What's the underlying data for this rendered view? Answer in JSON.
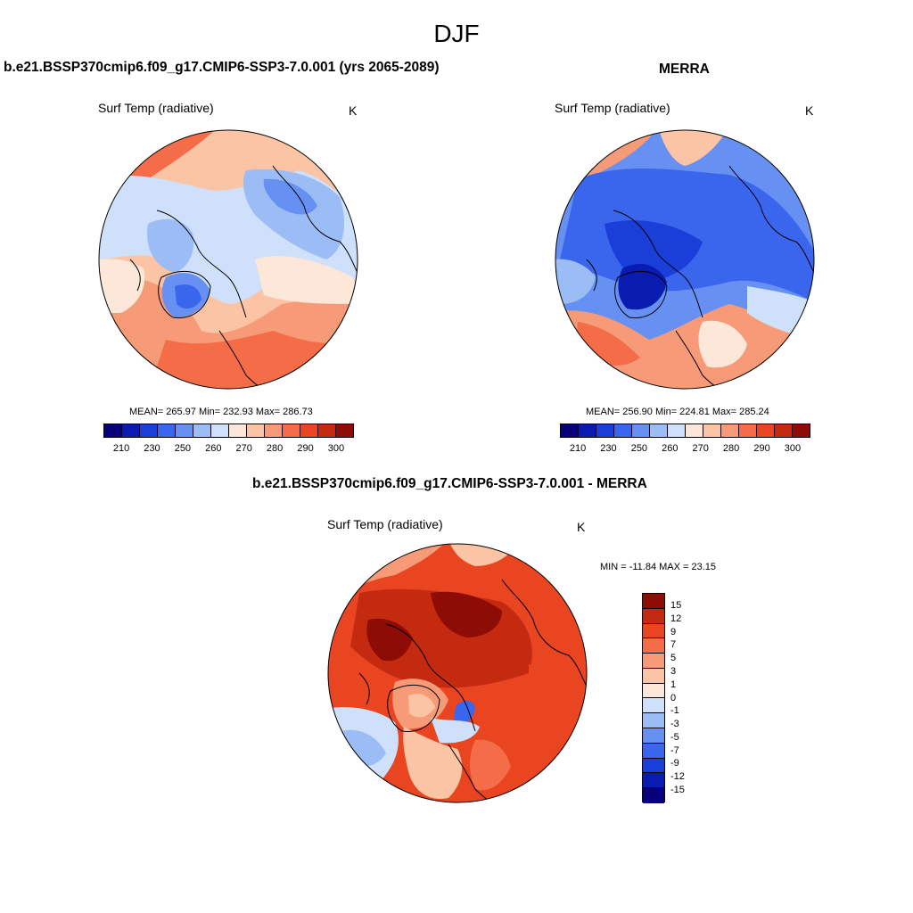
{
  "title": "DJF",
  "panels": [
    {
      "title": "b.e21.BSSP370cmip6.f09_g17.CMIP6-SSP3-7.0.001 (yrs 2065-2089)",
      "variable": "Surf Temp (radiative)",
      "units": "K",
      "stats": "MEAN= 265.97  Min= 232.93  Max= 286.73"
    },
    {
      "title": "MERRA",
      "variable": "Surf Temp (radiative)",
      "units": "K",
      "stats": "MEAN= 256.90  Min= 224.81  Max= 285.24"
    },
    {
      "title": "b.e21.BSSP370cmip6.f09_g17.CMIP6-SSP3-7.0.001 - MERRA",
      "variable": "Surf Temp (radiative)",
      "units": "K",
      "stats": "MIN = -11.84 MAX =  23.15"
    }
  ],
  "colorbar_abs": {
    "colors": [
      "#08007a",
      "#0a1cb0",
      "#1a3ed8",
      "#3a66ee",
      "#6690f2",
      "#9cbcf5",
      "#cfe0fa",
      "#fde7d8",
      "#fbc4a4",
      "#f79a78",
      "#f46c48",
      "#e84520",
      "#c42a10",
      "#8e0c06"
    ],
    "ticks": [
      "210",
      "230",
      "250",
      "260",
      "270",
      "280",
      "290",
      "300"
    ]
  },
  "colorbar_diff": {
    "colors": [
      "#08007a",
      "#0a1cb0",
      "#1a3ed8",
      "#3a66ee",
      "#6690f2",
      "#9cbcf5",
      "#cfe0fa",
      "#fde7d8",
      "#fbc4a4",
      "#f79a78",
      "#f46c48",
      "#e84520",
      "#c42a10",
      "#8e0c06"
    ],
    "labels": [
      "15",
      "12",
      "9",
      "7",
      "5",
      "3",
      "1",
      "0",
      "-1",
      "-3",
      "-5",
      "-7",
      "-9",
      "-12",
      "-15"
    ]
  }
}
